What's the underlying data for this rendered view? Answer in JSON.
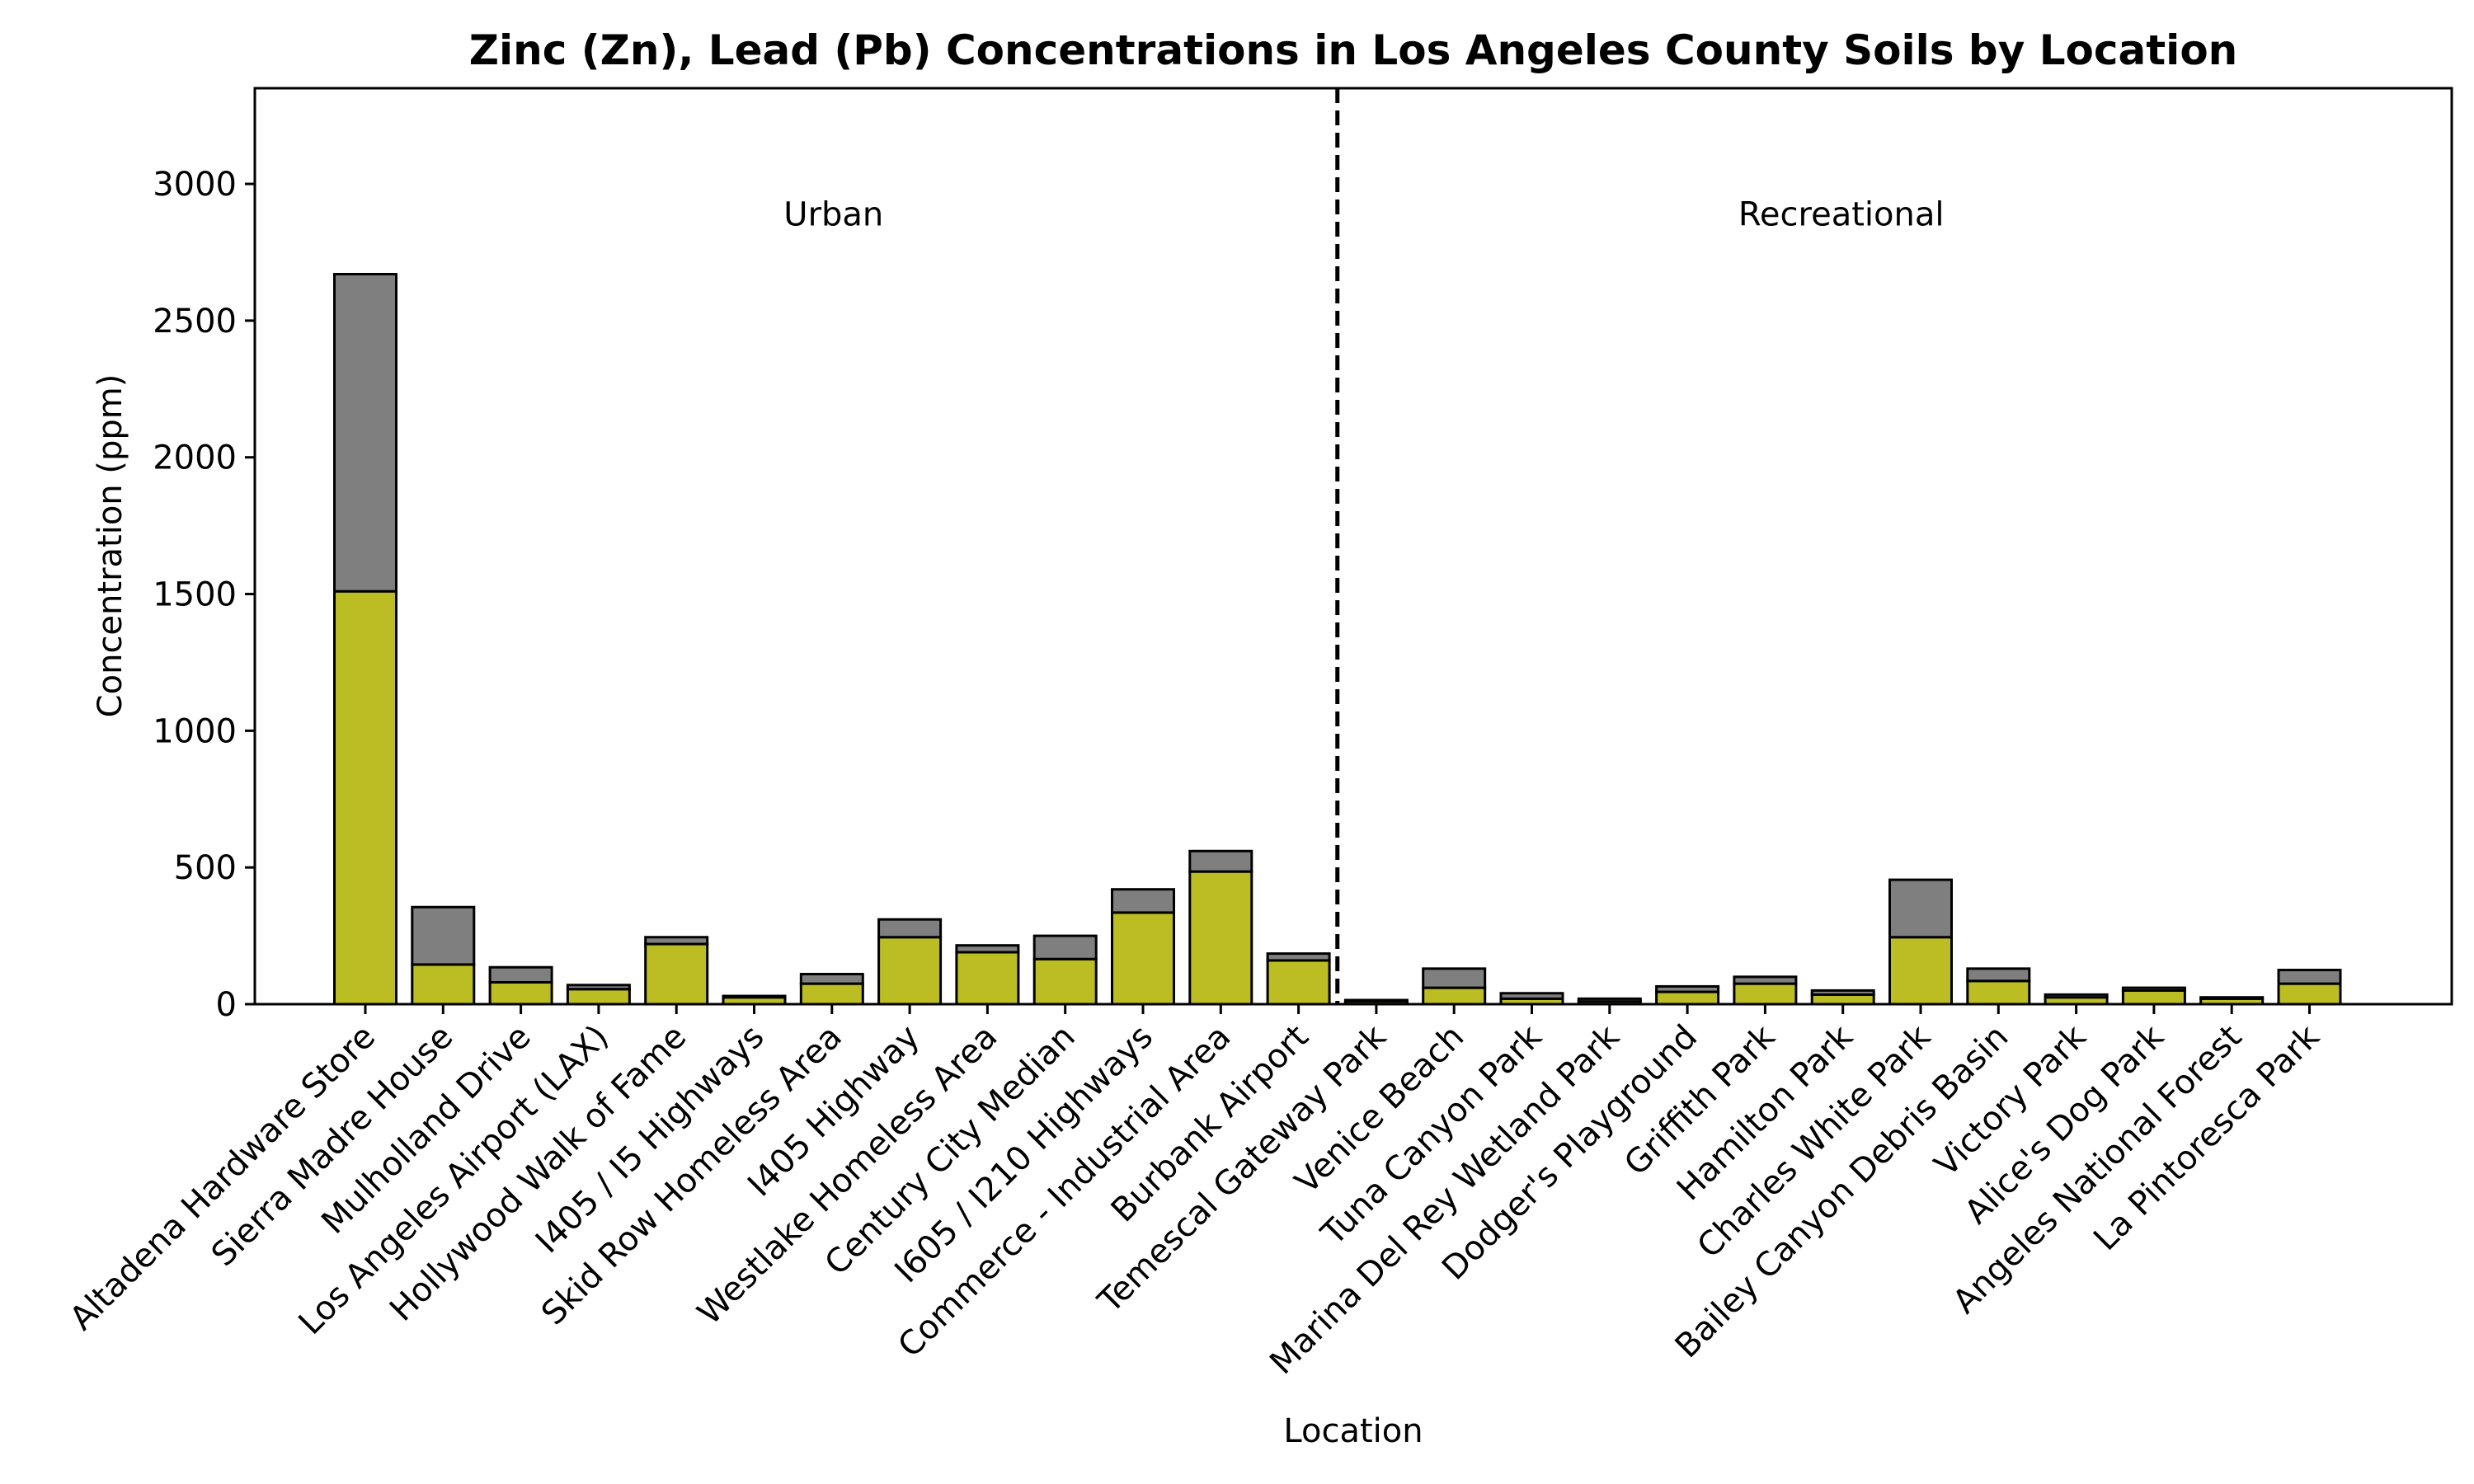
{
  "chart_data": {
    "type": "bar",
    "stacked": true,
    "title": "Zinc (Zn), Lead (Pb) Concentrations in Los Angeles County Soils by Location",
    "xlabel": "Location",
    "ylabel": "Concentration (ppm)",
    "ylim": [
      0,
      3350
    ],
    "yticks": [
      0,
      500,
      1000,
      1500,
      2000,
      2500,
      3000
    ],
    "grid": false,
    "categories": [
      "Altadena Hardware Store",
      "Sierra Madre House",
      "Mulholland Drive",
      "Los Angeles Airport (LAX)",
      "Hollywood Walk of Fame",
      "I405 / I5 Highways",
      "Skid Row Homeless Area",
      "I405 Highway",
      "Westlake Homeless Area",
      "Century City Median",
      "I605 / I210 Highways",
      "Commerce - Industrial Area",
      "Burbank Airport",
      "Temescal Gateway Park",
      "Venice Beach",
      "Tuna Canyon Park",
      "Marina Del Rey Wetland Park",
      "Dodger's Playground",
      "Griffith Park",
      "Hamilton Park",
      "Charles White Park",
      "Bailey Canyon Debris Basin",
      "Victory Park",
      "Alice's Dog Park",
      "Angeles National Forest",
      "La Pintoresca Park"
    ],
    "series": [
      {
        "color": "#bcbd22",
        "values": [
          1510,
          145,
          80,
          55,
          220,
          25,
          75,
          245,
          190,
          165,
          335,
          485,
          160,
          10,
          60,
          20,
          10,
          45,
          75,
          35,
          245,
          85,
          25,
          50,
          20,
          75
        ]
      },
      {
        "color": "#7f7f7f",
        "values": [
          1160,
          210,
          55,
          15,
          25,
          5,
          35,
          65,
          25,
          85,
          85,
          75,
          25,
          5,
          70,
          20,
          10,
          20,
          25,
          15,
          210,
          45,
          10,
          10,
          5,
          50
        ]
      }
    ],
    "regions": [
      {
        "label": "Urban",
        "label_y": 2890
      },
      {
        "label": "Recreational",
        "label_y": 2890
      }
    ],
    "divider_after_index": 12,
    "divider_style": "dashed"
  }
}
